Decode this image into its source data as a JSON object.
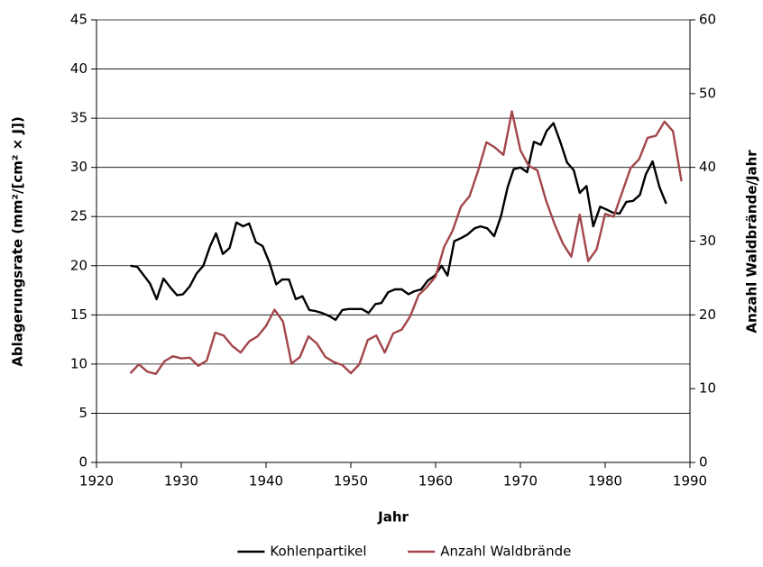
{
  "chart_data": {
    "type": "line",
    "xlabel": "Jahr",
    "ylabel": "Ablagerungsrate (mm²/[cm² × J])",
    "y2label": "Anzahl Waldbrände/Jahr",
    "xlim": [
      1920,
      1990
    ],
    "xticks": [
      1920,
      1930,
      1940,
      1950,
      1960,
      1970,
      1980,
      1990
    ],
    "ylim": [
      0,
      45
    ],
    "yticks": [
      0,
      5,
      10,
      15,
      20,
      25,
      30,
      35,
      40,
      45
    ],
    "y2lim": [
      0,
      60
    ],
    "y2ticks": [
      0,
      10,
      20,
      30,
      40,
      50,
      60
    ],
    "grid": true,
    "legend": "bottom",
    "series": [
      {
        "name": "Kohlenpartikel",
        "color": "#000000",
        "x": [
          1924.0,
          1924.8,
          1925.6,
          1926.3,
          1927.1,
          1927.9,
          1928.7,
          1929.5,
          1930.2,
          1931.0,
          1931.8,
          1932.6,
          1933.4,
          1934.1,
          1934.9,
          1935.7,
          1936.5,
          1937.3,
          1938.0,
          1938.8,
          1939.6,
          1940.4,
          1941.2,
          1941.9,
          1942.7,
          1943.5,
          1944.3,
          1945.1,
          1945.8,
          1946.6,
          1947.4,
          1948.2,
          1949.0,
          1949.7,
          1950.5,
          1951.3,
          1952.1,
          1952.9,
          1953.6,
          1954.4,
          1955.2,
          1956.0,
          1956.8,
          1957.5,
          1958.3,
          1959.1,
          1959.9,
          1960.7,
          1961.4,
          1962.2,
          1963.0,
          1963.8,
          1964.6,
          1965.3,
          1966.1,
          1966.9,
          1967.7,
          1968.5,
          1969.2,
          1970.0,
          1970.8,
          1971.6,
          1972.4,
          1973.1,
          1973.9,
          1974.7,
          1975.5,
          1976.3,
          1977.0,
          1977.8,
          1978.6,
          1979.4,
          1980.2,
          1980.9,
          1981.7,
          1982.5,
          1983.3,
          1984.1,
          1984.8,
          1985.6,
          1986.4,
          1987.2
        ],
        "values": [
          20.0,
          19.9,
          19.0,
          18.2,
          16.6,
          18.7,
          17.8,
          17.0,
          17.1,
          17.9,
          19.2,
          20.0,
          22.0,
          23.3,
          21.2,
          21.8,
          24.4,
          24.0,
          24.3,
          22.4,
          22.0,
          20.3,
          18.1,
          18.6,
          18.6,
          16.6,
          16.9,
          15.5,
          15.4,
          15.2,
          14.9,
          14.5,
          15.5,
          15.6,
          15.6,
          15.6,
          15.2,
          16.1,
          16.2,
          17.3,
          17.6,
          17.6,
          17.1,
          17.4,
          17.6,
          18.5,
          19.0,
          20.0,
          19.0,
          22.5,
          22.8,
          23.2,
          23.8,
          24.0,
          23.8,
          23.0,
          25.0,
          28.0,
          29.8,
          30.0,
          29.5,
          32.6,
          32.3,
          33.7,
          34.5,
          32.6,
          30.5,
          29.7,
          27.4,
          28.1,
          24.0,
          26.0,
          25.7,
          25.4,
          25.3,
          26.5,
          26.6,
          27.2,
          29.3,
          30.6,
          28.0,
          26.3
        ]
      },
      {
        "name": "Anzahl Waldbrände",
        "color": "#a2464b",
        "axis": "y2",
        "x": [
          1924,
          1925,
          1926,
          1927,
          1928,
          1929,
          1930,
          1931,
          1932,
          1933,
          1934,
          1935,
          1936,
          1937,
          1938,
          1939,
          1940,
          1941,
          1942,
          1943,
          1944,
          1945,
          1946,
          1947,
          1948,
          1949,
          1950,
          1951,
          1952,
          1953,
          1954,
          1955,
          1956,
          1957,
          1958,
          1959,
          1960,
          1961,
          1962,
          1963,
          1964,
          1965,
          1966,
          1967,
          1968,
          1969,
          1970,
          1971,
          1972,
          1973,
          1974,
          1975,
          1976,
          1977,
          1978,
          1979,
          1980,
          1981,
          1982,
          1983,
          1984,
          1985,
          1986,
          1987,
          1988,
          1989
        ],
        "values": [
          12.1,
          13.3,
          12.3,
          12.0,
          13.7,
          14.4,
          14.1,
          14.2,
          13.1,
          13.8,
          17.6,
          17.2,
          15.8,
          14.9,
          16.4,
          17.1,
          18.5,
          20.7,
          19.1,
          13.4,
          14.3,
          17.1,
          16.1,
          14.3,
          13.6,
          13.2,
          12.1,
          13.3,
          16.6,
          17.2,
          14.9,
          17.5,
          18.0,
          19.8,
          22.7,
          23.8,
          25.2,
          29.2,
          31.4,
          34.7,
          36.1,
          39.5,
          43.4,
          42.7,
          41.7,
          47.6,
          42.3,
          40.2,
          39.6,
          35.6,
          32.4,
          29.7,
          27.9,
          33.6,
          27.3,
          28.9,
          33.7,
          33.3,
          36.6,
          39.9,
          41.1,
          44.0,
          44.3,
          46.2,
          44.9,
          38.1
        ]
      }
    ]
  }
}
